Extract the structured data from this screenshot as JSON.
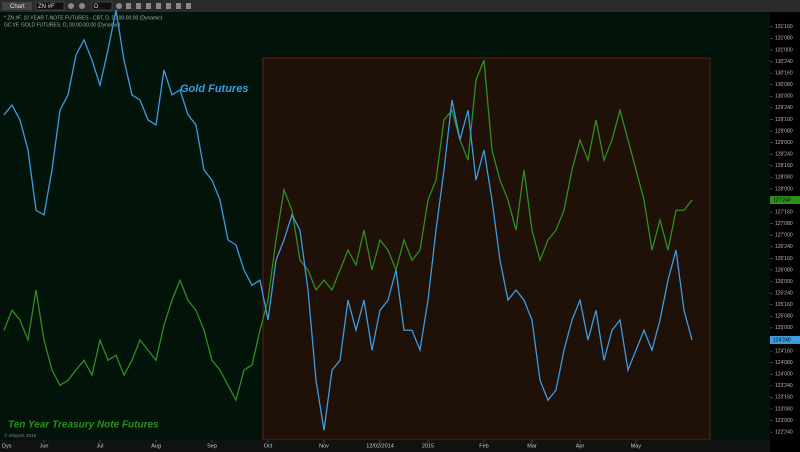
{
  "toolbar": {
    "window": "Chart",
    "symbol": "ZN #F",
    "interval": "D"
  },
  "chart_data": {
    "type": "line",
    "annotations": [
      "Gold Futures",
      "Ten Year Treasury Note Futures"
    ],
    "copyright": "© eSignal, 2015",
    "x_unit": "Dys",
    "categories": [
      null,
      null,
      null,
      null,
      null,
      "Jun",
      null,
      null,
      null,
      null,
      null,
      null,
      "Jul",
      null,
      null,
      null,
      null,
      null,
      null,
      "Aug",
      null,
      null,
      null,
      null,
      null,
      null,
      "Sep",
      null,
      null,
      null,
      null,
      null,
      null,
      "Oct",
      null,
      null,
      null,
      null,
      null,
      null,
      "Nov",
      null,
      null,
      null,
      null,
      null,
      null,
      "12/02/2014",
      null,
      null,
      null,
      null,
      null,
      "2015",
      null,
      null,
      null,
      null,
      null,
      null,
      "Feb",
      null,
      null,
      null,
      null,
      null,
      "Mar",
      null,
      null,
      null,
      null,
      null,
      "Apr",
      null,
      null,
      null,
      null,
      null,
      null,
      "May",
      null,
      null,
      null,
      null,
      null,
      null,
      null
    ],
    "series": [
      {
        "name": "* ZN #F, 10 YEAR T-NOTE FUTURES - CBT, D, 00:00-00:00 (Dynamic)",
        "color": "#2e8f1f",
        "last_label": "127'240",
        "values": [
          124.95,
          125.38,
          125.17,
          124.74,
          125.82,
          124.74,
          124.09,
          123.76,
          123.87,
          124.09,
          124.3,
          123.98,
          124.74,
          124.3,
          124.41,
          123.98,
          124.3,
          124.74,
          124.52,
          124.3,
          125.06,
          125.6,
          126.03,
          125.6,
          125.38,
          124.95,
          124.3,
          124.09,
          123.76,
          123.44,
          124.09,
          124.2,
          124.95,
          125.6,
          126.9,
          127.98,
          127.54,
          126.46,
          126.25,
          125.82,
          126.03,
          125.82,
          126.25,
          126.68,
          126.36,
          127.11,
          126.25,
          126.9,
          126.68,
          126.25,
          126.9,
          126.46,
          126.68,
          127.76,
          128.19,
          129.49,
          129.7,
          129.06,
          128.62,
          130.35,
          130.78,
          128.84,
          128.19,
          127.76,
          127.11,
          128.41,
          127.11,
          126.46,
          126.9,
          127.11,
          127.54,
          128.41,
          129.06,
          128.62,
          129.49,
          128.62,
          129.06,
          129.7,
          129.06,
          128.41,
          127.76,
          126.68,
          127.33,
          126.68,
          127.54,
          127.54,
          127.76
        ]
      },
      {
        "name": "GC #F, GOLD FUTURES, D, 00:00-00:00 (Dynamic)",
        "color": "#3d9be0",
        "last_label": "124'240",
        "values": [
          129.6,
          129.81,
          129.49,
          128.84,
          127.54,
          127.44,
          128.41,
          129.7,
          130.03,
          130.89,
          131.22,
          130.78,
          130.24,
          131.0,
          131.86,
          130.78,
          130.03,
          129.92,
          129.49,
          129.38,
          130.57,
          130.03,
          130.14,
          129.6,
          129.38,
          128.41,
          128.19,
          127.76,
          126.9,
          126.79,
          126.25,
          125.92,
          126.03,
          125.17,
          126.46,
          126.9,
          127.44,
          127.11,
          125.82,
          123.87,
          122.79,
          124.09,
          124.3,
          125.6,
          124.95,
          125.6,
          124.52,
          125.38,
          125.6,
          126.25,
          124.95,
          124.95,
          124.52,
          125.6,
          127.11,
          128.41,
          129.92,
          129.06,
          129.7,
          128.19,
          128.84,
          127.76,
          126.46,
          125.6,
          125.82,
          125.6,
          125.17,
          123.87,
          123.44,
          123.66,
          124.52,
          125.17,
          125.6,
          124.74,
          125.38,
          124.3,
          124.95,
          125.17,
          124.09,
          124.52,
          124.95,
          124.52,
          125.17,
          126.03,
          126.68,
          125.38,
          124.74
        ]
      }
    ],
    "ylim": [
      122.58,
      131.82
    ],
    "yticks": [
      {
        "value": 131.5,
        "label": "131'160"
      },
      {
        "value": 131.25,
        "label": "131'080"
      },
      {
        "value": 131,
        "label": "131'000"
      },
      {
        "value": 130.75,
        "label": "130'240"
      },
      {
        "value": 130.5,
        "label": "130'160"
      },
      {
        "value": 130.25,
        "label": "130'080"
      },
      {
        "value": 130,
        "label": "130'000"
      },
      {
        "value": 129.75,
        "label": "129'240"
      },
      {
        "value": 129.5,
        "label": "129'160"
      },
      {
        "value": 129.25,
        "label": "129'080"
      },
      {
        "value": 129,
        "label": "129'000"
      },
      {
        "value": 128.75,
        "label": "128'240"
      },
      {
        "value": 128.5,
        "label": "128'160"
      },
      {
        "value": 128.25,
        "label": "128'080"
      },
      {
        "value": 128,
        "label": "128'000"
      },
      {
        "value": 127.75,
        "label": "127'240"
      },
      {
        "value": 127.5,
        "label": "127'160"
      },
      {
        "value": 127.25,
        "label": "127'080"
      },
      {
        "value": 127,
        "label": "127'000"
      },
      {
        "value": 126.75,
        "label": "126'240"
      },
      {
        "value": 126.5,
        "label": "126'160"
      },
      {
        "value": 126.25,
        "label": "126'080"
      },
      {
        "value": 126,
        "label": "126'000"
      },
      {
        "value": 125.75,
        "label": "125'240"
      },
      {
        "value": 125.5,
        "label": "125'160"
      },
      {
        "value": 125.25,
        "label": "125'080"
      },
      {
        "value": 125,
        "label": "125'000"
      },
      {
        "value": 124.75,
        "label": "124'240"
      },
      {
        "value": 124.5,
        "label": "124'160"
      },
      {
        "value": 124.25,
        "label": "124'080"
      },
      {
        "value": 124,
        "label": "124'000"
      },
      {
        "value": 123.75,
        "label": "123'240"
      },
      {
        "value": 123.5,
        "label": "123'160"
      },
      {
        "value": 123.25,
        "label": "123'080"
      },
      {
        "value": 123,
        "label": "123'000"
      },
      {
        "value": 122.75,
        "label": "122'240"
      }
    ]
  }
}
